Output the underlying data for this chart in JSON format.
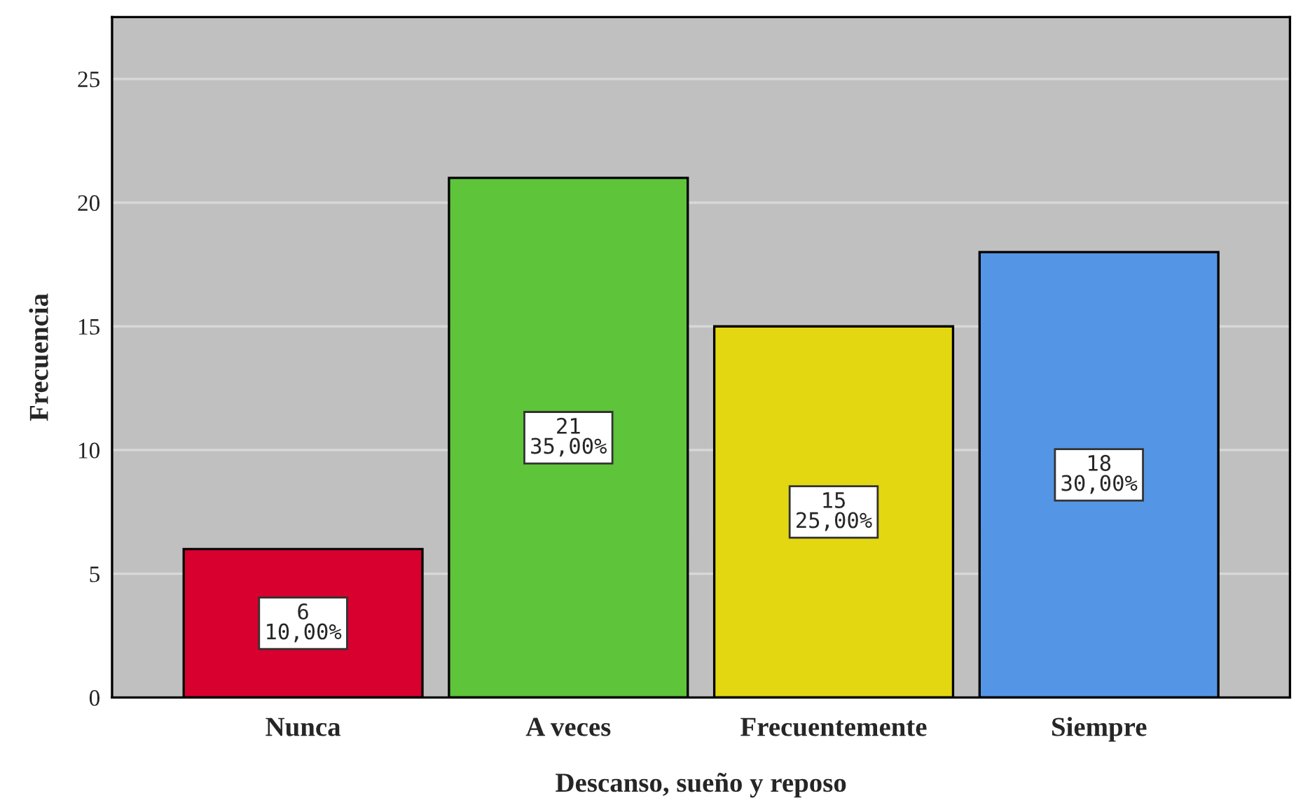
{
  "chart_data": {
    "type": "bar",
    "xlabel": "Descanso, sueño y reposo",
    "ylabel": "Frecuencia",
    "categories": [
      "Nunca",
      "A veces",
      "Frecuentemente",
      "Siempre"
    ],
    "values": [
      6,
      21,
      15,
      18
    ],
    "colors": [
      "#d7002f",
      "#5ec43a",
      "#e3d712",
      "#5595e5"
    ],
    "value_labels": [
      "6\n10,00%",
      "21\n35,00%",
      "15\n25,00%",
      "18\n30,00%"
    ],
    "ylim": [
      0,
      27.5
    ],
    "yticks": [
      0,
      5,
      10,
      15,
      20,
      25
    ],
    "grid": "y"
  }
}
